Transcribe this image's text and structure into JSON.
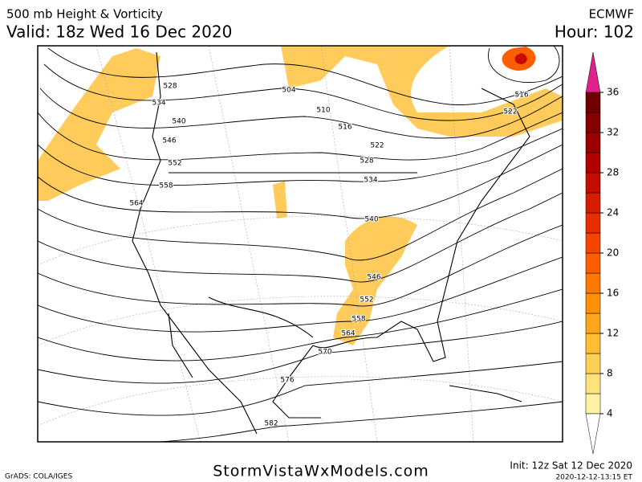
{
  "header": {
    "title": "500 mb Height & Vorticity",
    "model": "ECMWF",
    "valid": "Valid: 18z Wed 16 Dec 2020",
    "hour": "Hour: 102"
  },
  "map": {
    "contour_labels": [
      528,
      534,
      540,
      546,
      552,
      558,
      564,
      504,
      510,
      516,
      522,
      528,
      534,
      540,
      546,
      552,
      558,
      564,
      570,
      576,
      582,
      516,
      522
    ]
  },
  "colorbar": {
    "ticks": [
      4,
      8,
      12,
      16,
      20,
      24,
      28,
      32,
      36
    ],
    "colors": [
      "#fff2a6",
      "#ffe27a",
      "#ffd152",
      "#ffbd33",
      "#ffa51a",
      "#ff900a",
      "#ff7800",
      "#ff5e00",
      "#f54400",
      "#e82e00",
      "#d81c00",
      "#c40c00",
      "#b00000",
      "#9a0000",
      "#860000",
      "#700000"
    ],
    "top_color": "#e0208c"
  },
  "footer": {
    "credit": "GrADS: COLA/IGES",
    "site": "StormVistaWxModels.com",
    "init": "Init: 12z Sat 12 Dec 2020",
    "timestamp": "2020-12-12-13:15 ET"
  }
}
